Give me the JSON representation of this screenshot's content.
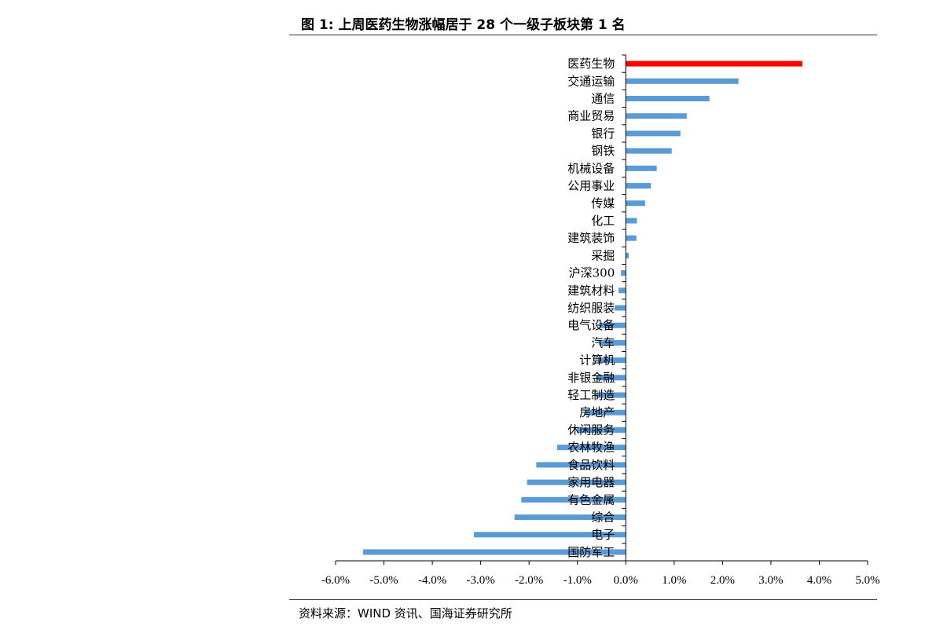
{
  "header": {
    "title": "图 1:  上周医药生物涨幅居于 28 个一级子板块第 1 名"
  },
  "footer": {
    "source": "资料来源：WIND 资讯、国海证券研究所"
  },
  "colors": {
    "highlight": "#ff0000",
    "bar": "#5b9bd5",
    "axis": "#000000"
  },
  "chart_data": {
    "type": "bar",
    "orientation": "horizontal",
    "categories": [
      "医药生物",
      "交通运输",
      "通信",
      "商业贸易",
      "银行",
      "钢铁",
      "机械设备",
      "公用事业",
      "传媒",
      "化工",
      "建筑装饰",
      "采掘",
      "沪深300",
      "建筑材料",
      "纺织服装",
      "电气设备",
      "汽车",
      "计算机",
      "非银金融",
      "轻工制造",
      "房地产",
      "休闲服务",
      "农林牧渔",
      "食品饮料",
      "家用电器",
      "有色金属",
      "综合",
      "电子",
      "国防军工"
    ],
    "values": [
      3.65,
      2.33,
      1.73,
      1.26,
      1.13,
      0.95,
      0.64,
      0.52,
      0.4,
      0.23,
      0.22,
      0.06,
      -0.1,
      -0.15,
      -0.23,
      -0.55,
      -0.56,
      -0.57,
      -0.6,
      -0.61,
      -0.85,
      -1.01,
      -1.42,
      -1.85,
      -2.04,
      -2.16,
      -2.3,
      -3.14,
      -5.43
    ],
    "highlight_category": "医药生物",
    "xlim": [
      -6.0,
      5.0
    ],
    "xticks": [
      "-6.0%",
      "-5.0%",
      "-4.0%",
      "-3.0%",
      "-2.0%",
      "-1.0%",
      "0.0%",
      "1.0%",
      "2.0%",
      "3.0%",
      "4.0%",
      "5.0%"
    ],
    "title": "图 1:  上周医药生物涨幅居于 28 个一级子板块第 1 名",
    "xlabel": "",
    "ylabel": "",
    "grid": false,
    "legend": "none"
  }
}
